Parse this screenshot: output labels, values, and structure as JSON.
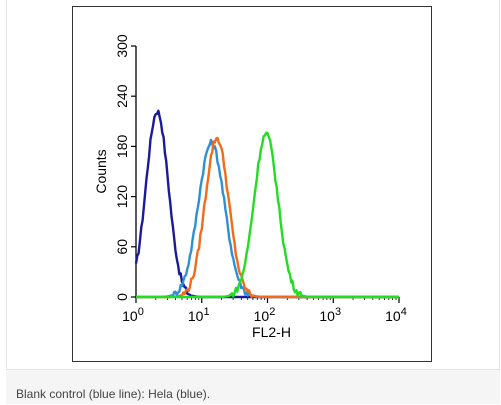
{
  "chart_data": {
    "type": "line",
    "xlabel": "FL2-H",
    "ylabel": "Counts",
    "xscale": "log",
    "xlim": [
      1,
      10000
    ],
    "ylim": [
      0,
      300
    ],
    "x_ticks": [
      {
        "value": 1,
        "base": "10",
        "exp": "0"
      },
      {
        "value": 10,
        "base": "10",
        "exp": "1"
      },
      {
        "value": 100,
        "base": "10",
        "exp": "2"
      },
      {
        "value": 1000,
        "base": "10",
        "exp": "3"
      },
      {
        "value": 10000,
        "base": "10",
        "exp": "4"
      }
    ],
    "y_ticks": [
      "0",
      "60",
      "120",
      "180",
      "240",
      "300"
    ],
    "grid": false,
    "series": [
      {
        "color": "#1a1a9c",
        "peak_x": 2.1,
        "peak_y": 222,
        "width_decades": 0.17
      },
      {
        "color": "#2e8fd6",
        "peak_x": 14,
        "peak_y": 184,
        "width_decades": 0.2
      },
      {
        "color": "#f26a1b",
        "peak_x": 17,
        "peak_y": 190,
        "width_decades": 0.18
      },
      {
        "color": "#22dd22",
        "peak_x": 95,
        "peak_y": 195,
        "width_decades": 0.18
      }
    ]
  },
  "caption": "Blank control (blue line): Hela (blue)."
}
